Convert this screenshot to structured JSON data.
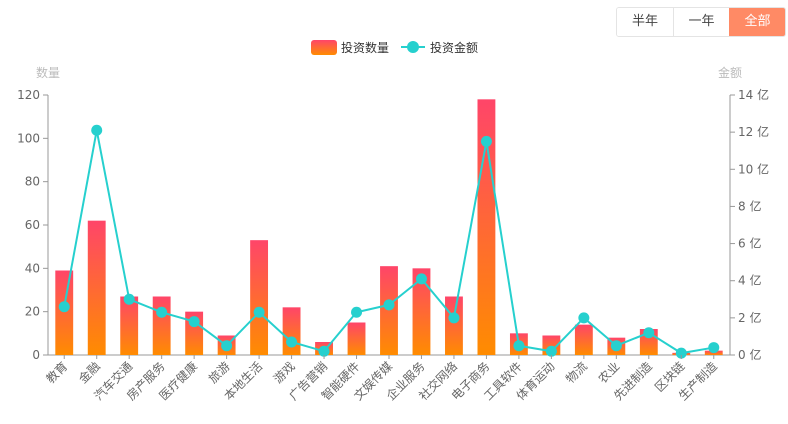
{
  "range_buttons": [
    {
      "label": "半年",
      "active": false
    },
    {
      "label": "一年",
      "active": false
    },
    {
      "label": "全部",
      "active": true
    }
  ],
  "chart_data": {
    "type": "bar",
    "categories": [
      "教育",
      "金融",
      "汽车交通",
      "房产服务",
      "医疗健康",
      "旅游",
      "本地生活",
      "游戏",
      "广告营销",
      "智能硬件",
      "文娱传媒",
      "企业服务",
      "社交网络",
      "电子商务",
      "工具软件",
      "体育运动",
      "物流",
      "农业",
      "先进制造",
      "区块链",
      "生产制造"
    ],
    "series": [
      {
        "name": "投资数量",
        "type": "bar",
        "axis": "left",
        "color_top": "#ff4569",
        "color_bottom": "#ff8c00",
        "values": [
          39,
          62,
          27,
          27,
          20,
          9,
          53,
          22,
          6,
          15,
          41,
          40,
          27,
          118,
          10,
          9,
          14,
          8,
          12,
          1,
          2
        ]
      },
      {
        "name": "投资金额",
        "type": "line",
        "axis": "right",
        "color": "#26d0ce",
        "values": [
          2.6,
          12.1,
          3.0,
          2.3,
          1.8,
          0.5,
          2.3,
          0.7,
          0.2,
          2.3,
          2.7,
          4.1,
          2.0,
          11.5,
          0.5,
          0.2,
          2.0,
          0.5,
          1.2,
          0.1,
          0.4
        ]
      }
    ],
    "y_left": {
      "name": "数量",
      "min": 0,
      "max": 120,
      "ticks": [
        "0",
        "20",
        "40",
        "60",
        "80",
        "100",
        "120"
      ]
    },
    "y_right": {
      "name": "金额",
      "min": 0,
      "max": 14,
      "ticks": [
        "0 亿",
        "2 亿",
        "4 亿",
        "6 亿",
        "8 亿",
        "10 亿",
        "12 亿",
        "14 亿"
      ]
    },
    "legend_position": "top-center",
    "grid": false
  }
}
